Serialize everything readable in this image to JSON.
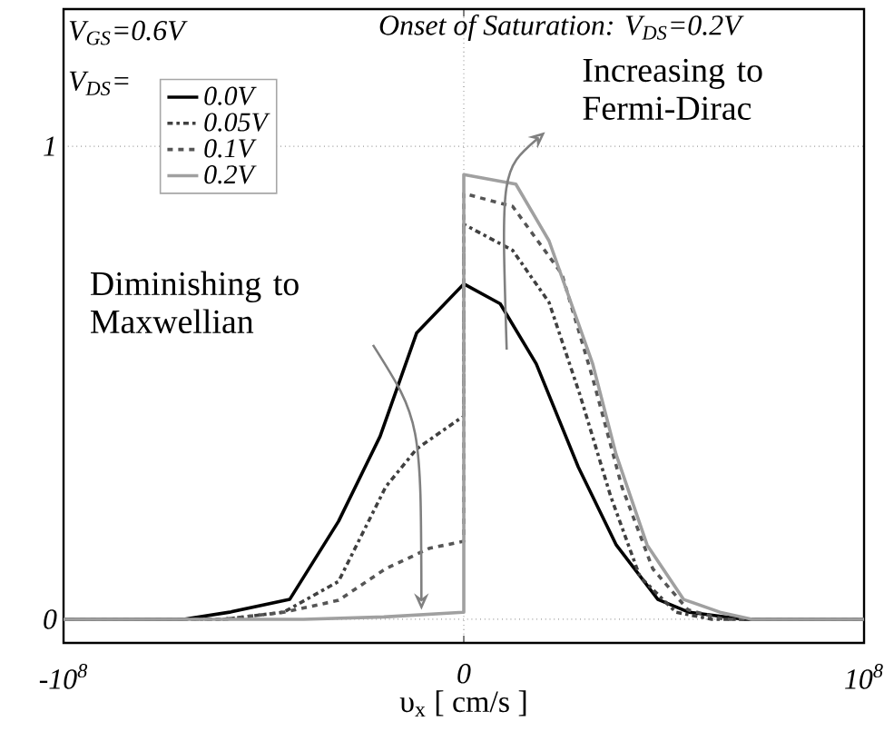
{
  "chart_data": {
    "type": "line",
    "title": "Onset of Saturation: V$_{DS}$=0.2V",
    "xlabel": "υ$_{x}$  [ cm/s ]",
    "legend_title": "V$_{DS}$=",
    "annotations": [
      "V$_{GS}$=0.6V",
      "Diminishing to Maxwellian",
      "Increasing to Fermi-Dirac"
    ],
    "xlim": [
      -100000000.0,
      100000000.0
    ],
    "ylim": [
      -0.05,
      1.29
    ],
    "xticks": [
      {
        "value": -100000000.0,
        "label": "-10$^{8}$"
      },
      {
        "value": 0,
        "label": "0"
      },
      {
        "value": 100000000.0,
        "label": "10$^{8}$"
      }
    ],
    "yticks": [
      0,
      1
    ],
    "grid": true,
    "legend": "top left",
    "marker": "none",
    "series": [
      {
        "name": "0.0V",
        "color": "#000000",
        "line_style": "solid",
        "x": [
          -100000000.0,
          -70000000.0,
          -58500000.0,
          -43500000.0,
          -31300000.0,
          -20900000.0,
          -11800000.0,
          0,
          9100000.0,
          18100000.0,
          28600000.0,
          38100000.0,
          48500000.0,
          56200000.0,
          70000000.0,
          100000000.0
        ],
        "values": [
          0,
          0,
          0.015,
          0.042,
          0.207,
          0.387,
          0.605,
          0.709,
          0.667,
          0.54,
          0.322,
          0.157,
          0.042,
          0.015,
          0,
          0
        ]
      },
      {
        "name": "0.05V",
        "color": "#404040",
        "line_style": "dashdot",
        "x": [
          -100000000.0,
          -60000000.0,
          -45000000.0,
          -31300000.0,
          -19500000.0,
          -11800000.0,
          0,
          0,
          12200000.0,
          21300000.0,
          29000000.0,
          36700000.0,
          44000000.0,
          53000000.0,
          62000000.0,
          100000000.0
        ],
        "values": [
          0,
          0,
          0.015,
          0.08,
          0.28,
          0.36,
          0.43,
          0.835,
          0.78,
          0.67,
          0.475,
          0.26,
          0.09,
          0.015,
          0,
          0
        ]
      },
      {
        "name": "0.1V",
        "color": "#555555",
        "line_style": "dashed",
        "x": [
          -100000000.0,
          -60000000.0,
          -45000000.0,
          -31300000.0,
          -19500000.0,
          -8600000.0,
          0,
          0,
          12200000.0,
          24500000.0,
          32200000.0,
          39500000.0,
          47200000.0,
          56000000.0,
          65000000.0,
          100000000.0
        ],
        "values": [
          0,
          0,
          0.015,
          0.04,
          0.107,
          0.15,
          0.165,
          0.9,
          0.873,
          0.73,
          0.51,
          0.28,
          0.107,
          0.02,
          0,
          0
        ]
      },
      {
        "name": "0.2V",
        "color": "#a0a0a0",
        "line_style": "solid",
        "x": [
          -100000000.0,
          -40000000.0,
          -20000000.0,
          0,
          0,
          13000000.0,
          21300000.0,
          32200000.0,
          38000000.0,
          45800000.0,
          54900000.0,
          64000000.0,
          72000000.0,
          100000000.0
        ],
        "values": [
          0,
          0,
          0.005,
          0.015,
          0.94,
          0.92,
          0.8,
          0.54,
          0.35,
          0.157,
          0.042,
          0.015,
          0,
          0
        ]
      }
    ]
  }
}
